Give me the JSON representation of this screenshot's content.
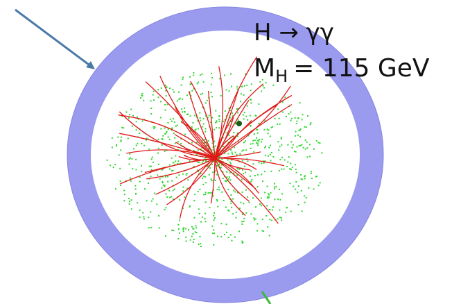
{
  "annotation": {
    "process": "H → γγ",
    "mass_symbol": "M",
    "mass_subscript": "H",
    "mass_value": "= 115 GeV"
  }
}
